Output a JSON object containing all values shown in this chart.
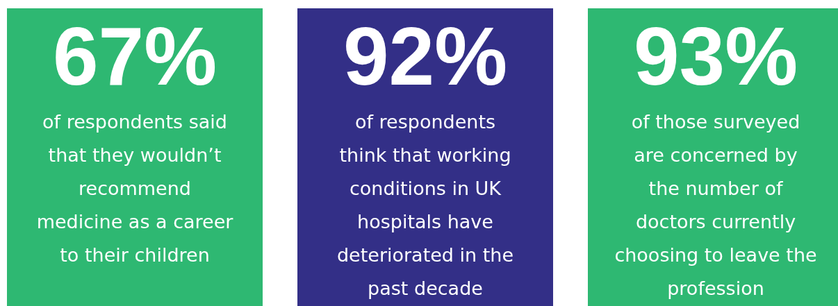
{
  "chart_data": {
    "type": "other",
    "categories": [
      "of respondents said\nthat they wouldn’t\nrecommend\nmedicine as a career\nto their children",
      "of respondents\nthink that working\nconditions in UK\nhospitals have\ndeteriorated in the\npast decade",
      "of those surveyed\nare concerned by\nthe number of\ndoctors currently\nchoosing to leave the\nprofession"
    ],
    "values": [
      67,
      92,
      93
    ],
    "value_labels": [
      "67%",
      "92%",
      "93%"
    ],
    "colors": [
      "#2eb872",
      "#332f87",
      "#2eb872"
    ]
  }
}
